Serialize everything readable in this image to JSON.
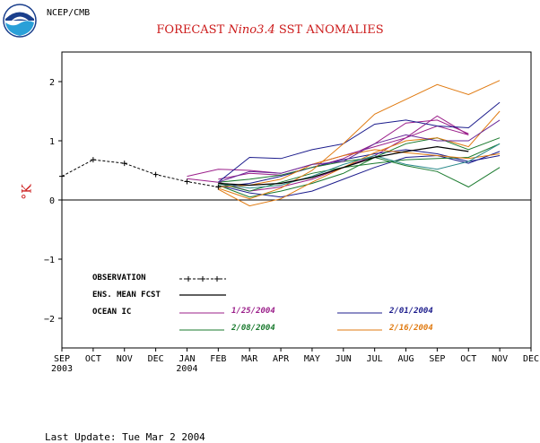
{
  "header": {
    "agency": "NCEP/CMB",
    "title_part1": "FORECAST ",
    "title_part2": "Nino3.4",
    "title_part3": " SST ANOMALIES",
    "ylabel": "°K"
  },
  "footer": {
    "text": "Last Update: Tue Mar 2 2004"
  },
  "legend": {
    "observation": "OBSERVATION",
    "ens_mean": "ENS. MEAN FCST",
    "ocean_ic": "OCEAN IC",
    "ic_dates": [
      {
        "label": "1/25/2004",
        "color": "#9b1f8a"
      },
      {
        "label": "2/01/2004",
        "color": "#1c1c8c"
      },
      {
        "label": "2/08/2004",
        "color": "#1a7a2e"
      },
      {
        "label": "2/16/2004",
        "color": "#e07a10"
      }
    ]
  },
  "chart_data": {
    "type": "line",
    "title": "FORECAST Nino3.4 SST ANOMALIES",
    "ylabel": "°K",
    "categories": [
      "SEP",
      "OCT",
      "NOV",
      "DEC",
      "JAN",
      "FEB",
      "MAR",
      "APR",
      "MAY",
      "JUN",
      "JUL",
      "AUG",
      "SEP",
      "OCT",
      "NOV",
      "DEC"
    ],
    "year_labels": [
      {
        "index": 0,
        "label": "2003"
      },
      {
        "index": 4,
        "label": "2004"
      }
    ],
    "ylim": [
      -2.5,
      2.5
    ],
    "yticks": [
      2,
      1,
      0,
      -1,
      -2
    ],
    "ytick_labels": [
      "2",
      "1",
      "0",
      "−1",
      "−2"
    ],
    "observation": {
      "x": [
        0,
        1,
        2,
        3,
        4,
        5
      ],
      "y": [
        0.4,
        0.68,
        0.62,
        0.43,
        0.31,
        0.22
      ]
    },
    "ensemble_mean": {
      "x": [
        5,
        6,
        7,
        8,
        9,
        10,
        11,
        12,
        13
      ],
      "y": [
        0.28,
        0.25,
        0.28,
        0.38,
        0.55,
        0.72,
        0.82,
        0.9,
        0.82
      ]
    },
    "series": [
      {
        "color": "#9b1f8a",
        "x": [
          4,
          5,
          6,
          7,
          8,
          9,
          10,
          11,
          12,
          13
        ],
        "y": [
          0.4,
          0.52,
          0.5,
          0.45,
          0.6,
          0.75,
          0.9,
          1.05,
          1.25,
          1.1
        ]
      },
      {
        "color": "#9b1f8a",
        "x": [
          4,
          5,
          6,
          7,
          8,
          9,
          10,
          11,
          12,
          13
        ],
        "y": [
          0.36,
          0.3,
          0.15,
          0.22,
          0.35,
          0.55,
          0.75,
          1.05,
          1.42,
          1.1
        ]
      },
      {
        "color": "#9b1f8a",
        "x": [
          5,
          6,
          7,
          8,
          9,
          10,
          11,
          12,
          13
        ],
        "y": [
          0.35,
          0.45,
          0.42,
          0.55,
          0.7,
          0.95,
          1.3,
          1.35,
          1.12
        ]
      },
      {
        "color": "#1c1c8c",
        "x": [
          5,
          6,
          7,
          8,
          9,
          10,
          11,
          12,
          13,
          14
        ],
        "y": [
          0.3,
          0.72,
          0.7,
          0.85,
          0.95,
          1.28,
          1.35,
          1.25,
          1.22,
          1.65
        ]
      },
      {
        "color": "#1c1c8c",
        "x": [
          5,
          6,
          7,
          8,
          9,
          10,
          11,
          12,
          13,
          14
        ],
        "y": [
          0.25,
          0.12,
          0.05,
          0.15,
          0.35,
          0.55,
          0.72,
          0.75,
          0.62,
          0.82
        ]
      },
      {
        "color": "#1c1c8c",
        "x": [
          5,
          6,
          7,
          8,
          9,
          10,
          11,
          12,
          13,
          14
        ],
        "y": [
          0.22,
          0.28,
          0.4,
          0.55,
          0.68,
          0.78,
          0.85,
          0.78,
          0.65,
          0.75
        ]
      },
      {
        "color": "#1a7a2e",
        "x": [
          5,
          6,
          7,
          8,
          9,
          10,
          11,
          12,
          13,
          14
        ],
        "y": [
          0.3,
          0.35,
          0.42,
          0.55,
          0.65,
          0.72,
          0.58,
          0.48,
          0.22,
          0.55
        ]
      },
      {
        "color": "#1a7a2e",
        "x": [
          5,
          6,
          7,
          8,
          9,
          10,
          11,
          12,
          13,
          14
        ],
        "y": [
          0.25,
          0.05,
          0.15,
          0.28,
          0.45,
          0.72,
          0.95,
          1.05,
          0.85,
          1.05
        ]
      },
      {
        "color": "#1a7a2e",
        "x": [
          5,
          6,
          7,
          8,
          9,
          10,
          11,
          12,
          13,
          14
        ],
        "y": [
          0.28,
          0.15,
          0.3,
          0.45,
          0.55,
          0.62,
          0.68,
          0.7,
          0.72,
          0.95
        ]
      },
      {
        "color": "#e07a10",
        "x": [
          5,
          6,
          7,
          8,
          9,
          10,
          11,
          12,
          13,
          14
        ],
        "y": [
          0.18,
          -0.1,
          0.02,
          0.3,
          0.55,
          0.8,
          1.0,
          1.05,
          0.9,
          1.5
        ]
      },
      {
        "color": "#e07a10",
        "x": [
          5,
          6,
          7,
          8,
          9,
          10,
          11,
          12,
          13,
          14
        ],
        "y": [
          0.2,
          0.02,
          0.2,
          0.5,
          0.95,
          1.45,
          1.7,
          1.95,
          1.78,
          2.02
        ]
      },
      {
        "color": "#e07a10",
        "x": [
          5,
          6,
          7,
          8,
          9,
          10,
          11,
          12,
          13,
          14
        ],
        "y": [
          0.22,
          0.25,
          0.35,
          0.6,
          0.75,
          0.85,
          0.8,
          0.75,
          0.7,
          0.78
        ]
      },
      {
        "color": "#2a8a8a",
        "x": [
          5,
          6,
          7,
          8,
          9,
          10,
          11,
          12,
          13,
          14
        ],
        "y": [
          0.28,
          0.2,
          0.25,
          0.4,
          0.6,
          0.75,
          0.6,
          0.52,
          0.65,
          0.95
        ]
      },
      {
        "color": "#6a2a9a",
        "x": [
          5,
          6,
          7,
          8,
          9,
          10,
          11,
          12,
          13,
          14
        ],
        "y": [
          0.3,
          0.48,
          0.45,
          0.6,
          0.65,
          0.95,
          1.1,
          1.0,
          1.0,
          1.35
        ]
      }
    ]
  }
}
